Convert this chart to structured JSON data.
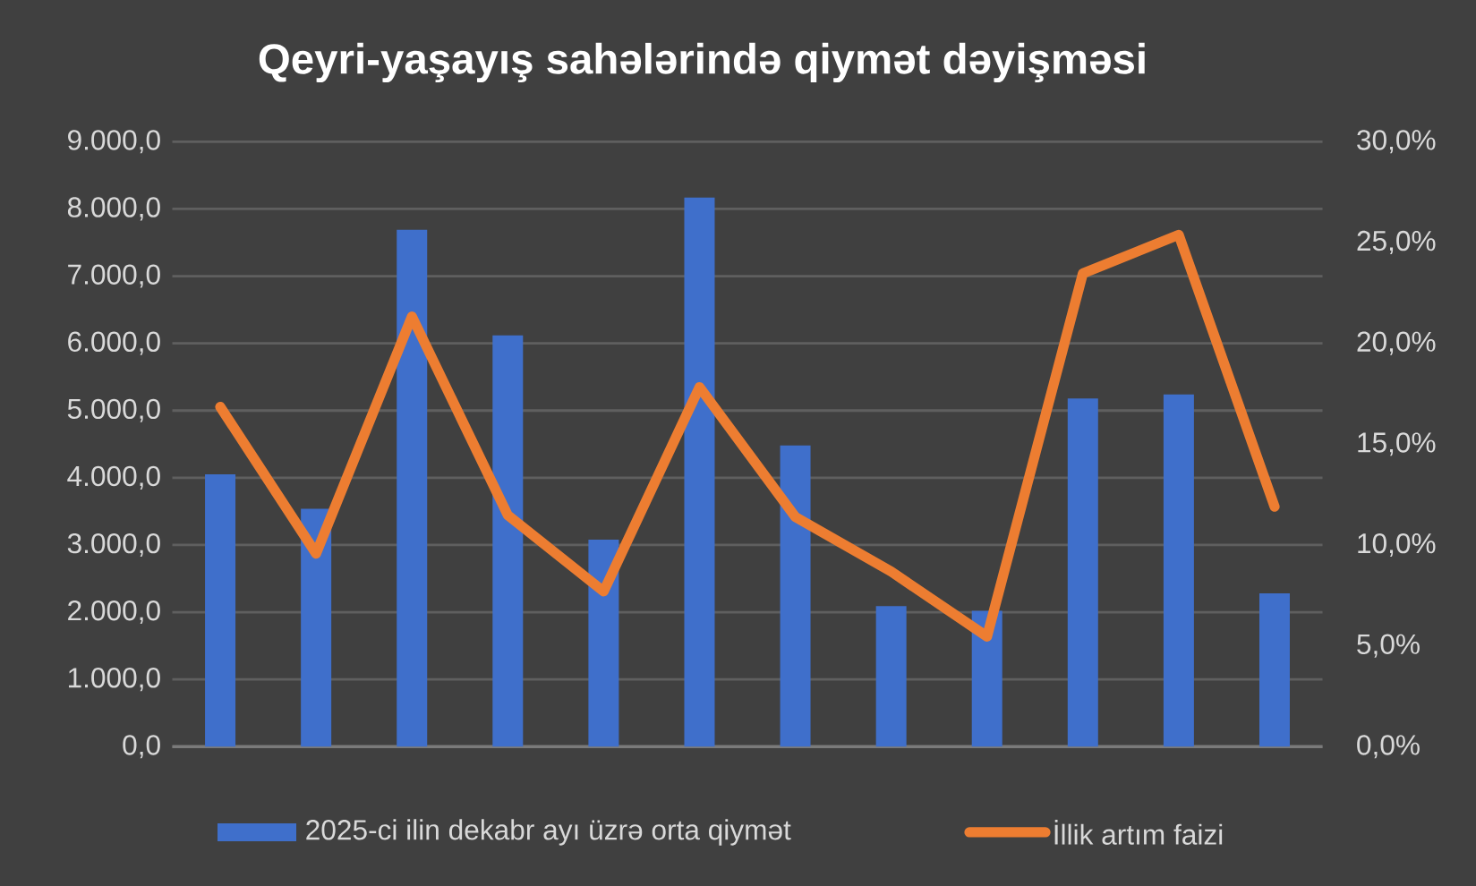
{
  "chart_data": {
    "type": "bar",
    "title": "Qeyri-yaşayış sahələrində qiymət dəyişməsi",
    "categories": [
      null,
      null,
      null,
      null,
      null,
      null,
      null,
      null,
      null,
      null,
      null,
      null
    ],
    "series": [
      {
        "name": "2025-ci ilin dekabr ayı üzrə orta qiymət",
        "color": "#3f6fcb",
        "values": [
          4050,
          3540,
          7690,
          6120,
          3080,
          8170,
          4480,
          2090,
          2020,
          5180,
          5240,
          2280
        ]
      },
      {
        "name": "İllik artım faizi",
        "type": "line",
        "axis": "y2",
        "color": "#ed7d31",
        "values": [
          16.85,
          9.57,
          21.33,
          11.48,
          7.7,
          17.83,
          11.39,
          8.68,
          5.46,
          23.47,
          25.38,
          11.9
        ]
      }
    ],
    "ylim": [
      0,
      9000
    ],
    "yticks": [
      {
        "value": 0,
        "label": "0,0"
      },
      {
        "value": 1000,
        "label": "1.000,0"
      },
      {
        "value": 2000,
        "label": "2.000,0"
      },
      {
        "value": 3000,
        "label": "3.000,0"
      },
      {
        "value": 4000,
        "label": "4.000,0"
      },
      {
        "value": 5000,
        "label": "5.000,0"
      },
      {
        "value": 6000,
        "label": "6.000,0"
      },
      {
        "value": 7000,
        "label": "7.000,0"
      },
      {
        "value": 8000,
        "label": "8.000,0"
      },
      {
        "value": 9000,
        "label": "9.000,0"
      }
    ],
    "y2lim": [
      0,
      30
    ],
    "y2ticks": [
      {
        "value": 0,
        "label": "0,0%"
      },
      {
        "value": 5,
        "label": "5,0%"
      },
      {
        "value": 10,
        "label": "10,0%"
      },
      {
        "value": 15,
        "label": "15,0%"
      },
      {
        "value": 20,
        "label": "20,0%"
      },
      {
        "value": 25,
        "label": "25,0%"
      },
      {
        "value": 30,
        "label": "30,0%"
      }
    ],
    "grid": "y",
    "legend": "bottom",
    "marker": "none",
    "line_style": "solid"
  }
}
